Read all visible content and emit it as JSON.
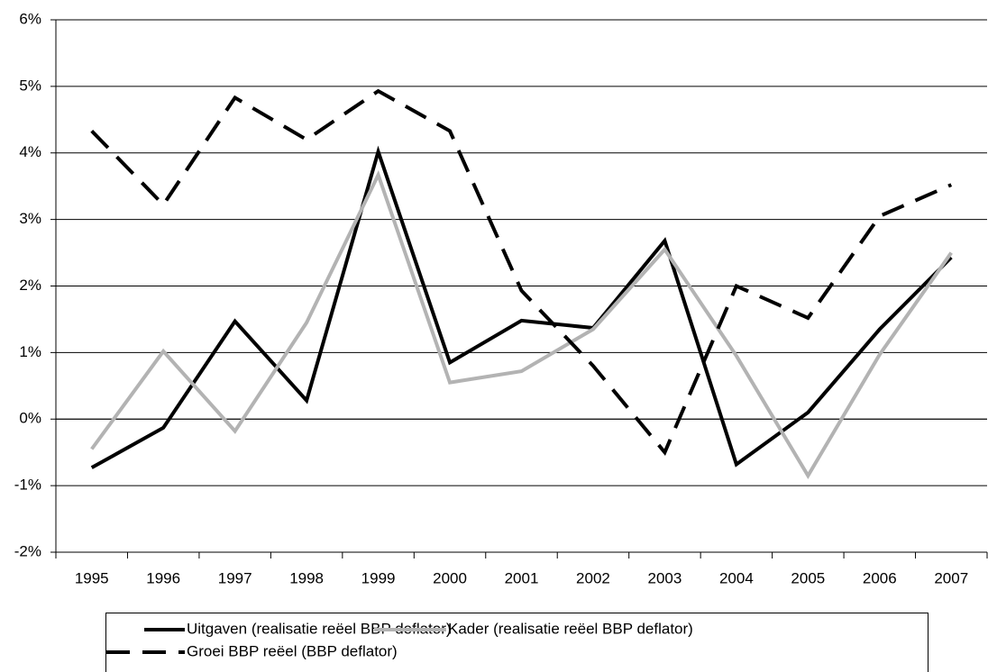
{
  "chart_data": {
    "type": "line",
    "categories": [
      "1995",
      "1996",
      "1997",
      "1998",
      "1999",
      "2000",
      "2001",
      "2002",
      "2003",
      "2004",
      "2005",
      "2006",
      "2007"
    ],
    "series": [
      {
        "name": "Uitgaven (realisatie reëel BBP deflator)",
        "color": "#000000",
        "line_style": "solid",
        "values": [
          -0.73,
          -0.13,
          1.47,
          0.28,
          4.02,
          0.85,
          1.48,
          1.37,
          2.68,
          -0.68,
          0.1,
          1.35,
          2.43
        ]
      },
      {
        "name": "Kader (realisatie reëel BBP deflator)",
        "color": "#b3b3b3",
        "line_style": "solid",
        "values": [
          -0.45,
          1.02,
          -0.18,
          1.45,
          3.67,
          0.55,
          0.72,
          1.35,
          2.55,
          0.95,
          -0.85,
          0.97,
          2.5
        ]
      },
      {
        "name": "Groei BBP reëel (BBP deflator)",
        "color": "#000000",
        "line_style": "dashed",
        "values": [
          4.33,
          3.22,
          4.83,
          4.2,
          4.93,
          4.33,
          1.93,
          0.8,
          -0.5,
          2.0,
          1.52,
          3.05,
          3.52
        ]
      }
    ],
    "ylim": [
      -2,
      6
    ],
    "yticks": [
      {
        "value": -2,
        "label": "-2%"
      },
      {
        "value": -1,
        "label": "-1%"
      },
      {
        "value": 0,
        "label": "0%"
      },
      {
        "value": 1,
        "label": "1%"
      },
      {
        "value": 2,
        "label": "2%"
      },
      {
        "value": 3,
        "label": "3%"
      },
      {
        "value": 4,
        "label": "4%"
      },
      {
        "value": 5,
        "label": "5%"
      },
      {
        "value": 6,
        "label": "6%"
      }
    ],
    "grid": true,
    "legend": "bottom"
  }
}
